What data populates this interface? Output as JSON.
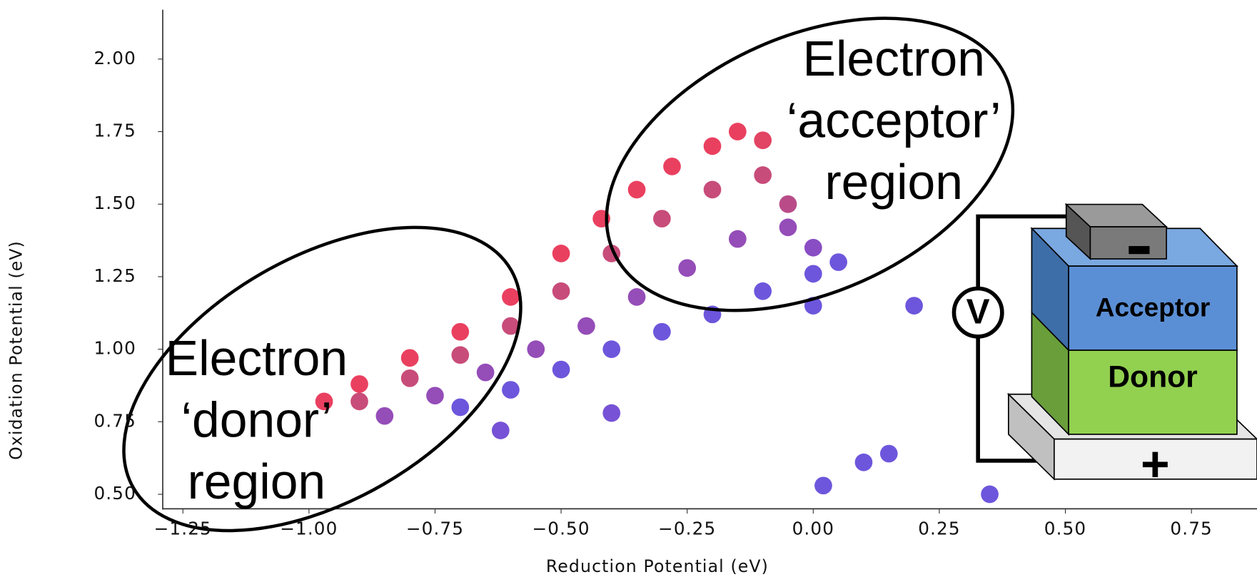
{
  "chart_data": {
    "type": "scatter",
    "x_label": "Reduction Potential (eV)",
    "y_label": "Oxidation Potential (eV)",
    "xlim": [
      -1.29,
      0.88
    ],
    "ylim": [
      0.45,
      2.17
    ],
    "xticks": [
      {
        "value": -1.25,
        "label": "−1.25"
      },
      {
        "value": -1.0,
        "label": "−1.00"
      },
      {
        "value": -0.75,
        "label": "−0.75"
      },
      {
        "value": -0.5,
        "label": "−0.50"
      },
      {
        "value": -0.25,
        "label": "−0.25"
      },
      {
        "value": 0,
        "label": "0.00"
      },
      {
        "value": 0.25,
        "label": "0.25"
      },
      {
        "value": 0.5,
        "label": "0.50"
      },
      {
        "value": 0.75,
        "label": "0.75"
      }
    ],
    "yticks": [
      {
        "value": 0.5,
        "label": "0.50"
      },
      {
        "value": 0.75,
        "label": "0.75"
      },
      {
        "value": 1.0,
        "label": "1.00"
      },
      {
        "value": 1.25,
        "label": "1.25"
      },
      {
        "value": 1.5,
        "label": "1.50"
      },
      {
        "value": 1.75,
        "label": "1.75"
      },
      {
        "value": 2.0,
        "label": "2.00"
      }
    ],
    "x": [
      -0.97,
      -0.9,
      -0.8,
      -0.7,
      -0.6,
      -0.5,
      -0.42,
      -0.35,
      -0.28,
      -0.2,
      -0.15,
      -0.1,
      -0.9,
      -0.8,
      -0.7,
      -0.6,
      -0.5,
      -0.4,
      -0.3,
      -0.2,
      -0.1,
      -0.05,
      -0.85,
      -0.75,
      -0.65,
      -0.55,
      -0.45,
      -0.35,
      -0.25,
      -0.15,
      -0.05,
      0.0,
      -0.7,
      -0.6,
      -0.5,
      -0.4,
      -0.3,
      -0.2,
      -0.1,
      0.0,
      0.05,
      -0.62,
      -0.4,
      0.02,
      0.1,
      0.15,
      0.35,
      0.2,
      0.0
    ],
    "y": [
      0.82,
      0.88,
      0.97,
      1.06,
      1.18,
      1.33,
      1.45,
      1.55,
      1.63,
      1.7,
      1.75,
      1.72,
      0.82,
      0.9,
      0.98,
      1.08,
      1.2,
      1.33,
      1.45,
      1.55,
      1.6,
      1.5,
      0.77,
      0.84,
      0.92,
      1.0,
      1.08,
      1.18,
      1.28,
      1.38,
      1.42,
      1.35,
      0.8,
      0.86,
      0.93,
      1.0,
      1.06,
      1.12,
      1.2,
      1.26,
      1.3,
      0.72,
      0.78,
      0.53,
      0.61,
      0.64,
      0.5,
      1.15,
      1.15
    ],
    "colors": [
      "#e3002b",
      "#e3002b",
      "#e3002b",
      "#e3002b",
      "#e3002b",
      "#e3002b",
      "#e3002b",
      "#e3002b",
      "#e3002b",
      "#e3002b",
      "#e3002b",
      "#d8062f",
      "#b5104c",
      "#b5104c",
      "#b5104c",
      "#b5104c",
      "#b5104c",
      "#b5104c",
      "#b5104c",
      "#b5104c",
      "#b5104c",
      "#a21060",
      "#7212a0",
      "#7212a0",
      "#7212a0",
      "#7212a0",
      "#7212a0",
      "#7212a0",
      "#7212a0",
      "#7212a0",
      "#7212a0",
      "#6212b0",
      "#3c1ed0",
      "#3c1ed0",
      "#3c1ed0",
      "#3c1ed0",
      "#3c1ed0",
      "#3c1ed0",
      "#3c1ed0",
      "#3c1ed0",
      "#3c1ed0",
      "#4a18c8",
      "#4a18c8",
      "#3c1ed0",
      "#3c1ed0",
      "#3c1ed0",
      "#3c1ed0",
      "#3c1ed0",
      "#3c1ed0"
    ],
    "annotations": [
      {
        "lines": [
          "Electron",
          "‘donor’",
          "region"
        ]
      },
      {
        "lines": [
          "Electron",
          "‘acceptor’",
          "region"
        ]
      }
    ]
  },
  "diagram": {
    "voltmeter": "V",
    "acceptor": "Acceptor",
    "donor": "Donor",
    "positive": "+"
  }
}
